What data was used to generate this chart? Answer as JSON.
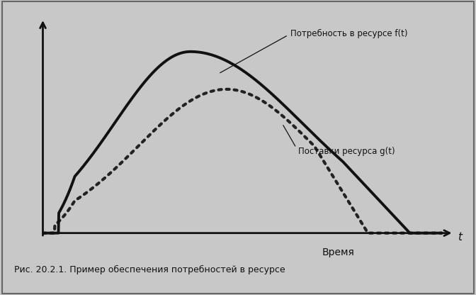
{
  "caption": "Рис. 20.2.1. Пример обеспечения потребностей в ресурсе",
  "xlabel": "Время",
  "xlabel_t": "t",
  "label_ft": "Потребность в ресурсе f(t)",
  "label_gt": "Поставки ресурса g(t)",
  "outer_bg_color": "#c8c8c8",
  "plot_bg_color": "#f0f0ec",
  "solid_color": "#111111",
  "dotted_color": "#222222",
  "annotation_color": "#111111",
  "border_color": "#888888",
  "caption_bg": "#d8d8d4"
}
